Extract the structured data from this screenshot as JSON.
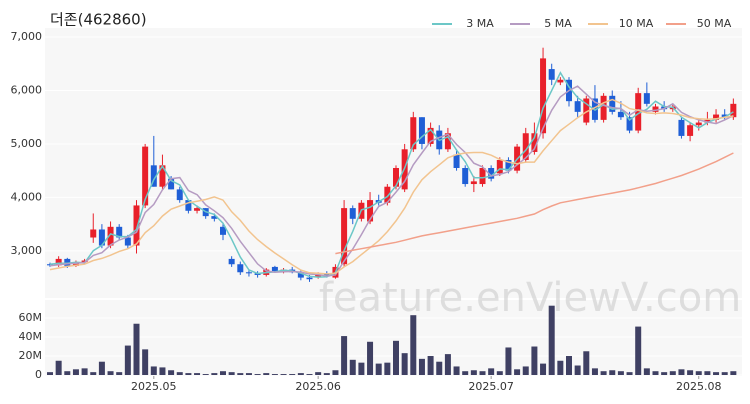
{
  "chart_data": [
    {
      "type": "candlestick",
      "title": "더존(462860)",
      "watermark": "feature.enViewV.com",
      "up_color": "#e8202a",
      "down_color": "#1f5fd6",
      "ylim": [
        2100,
        7000
      ],
      "yticks": [
        {
          "value": 3000,
          "label": "3,000"
        },
        {
          "value": 4000,
          "label": "4,000"
        },
        {
          "value": 5000,
          "label": "5,000"
        },
        {
          "value": 6000,
          "label": "6,000"
        },
        {
          "value": 7000,
          "label": "7,000"
        }
      ],
      "open": [
        2750,
        2730,
        2850,
        2720,
        2790,
        3250,
        3400,
        3100,
        3450,
        3250,
        3100,
        3850,
        4600,
        4200,
        4350,
        4150,
        3950,
        3750,
        3800,
        3650,
        3450,
        2850,
        2750,
        2600,
        2580,
        2550,
        2700,
        2620,
        2650,
        2600,
        2500,
        2520,
        2560,
        2500,
        2750,
        3800,
        3600,
        3550,
        3950,
        3900,
        4200,
        4150,
        4900,
        5500,
        5000,
        5250,
        4900,
        4800,
        4550,
        4250,
        4250,
        4550,
        4450,
        4700,
        4500,
        4700,
        4850,
        5200,
        6400,
        6150,
        6200,
        5800,
        5400,
        5850,
        5450,
        5900,
        5600,
        5500,
        5250,
        5950,
        5600,
        5700,
        5650,
        5450,
        5150,
        5350,
        5400,
        5450,
        5550,
        5500
      ],
      "high": [
        2780,
        2900,
        2870,
        2820,
        2850,
        3700,
        3500,
        3550,
        3500,
        3300,
        3950,
        5000,
        5150,
        4800,
        4400,
        4200,
        3950,
        3850,
        3800,
        3700,
        3500,
        2900,
        2800,
        2650,
        2620,
        2680,
        2720,
        2680,
        2700,
        2650,
        2550,
        2600,
        2620,
        2750,
        3950,
        3850,
        3950,
        4100,
        4050,
        4250,
        4600,
        5000,
        5600,
        5500,
        5400,
        5350,
        5300,
        4900,
        4600,
        4400,
        4600,
        4600,
        4750,
        4750,
        5000,
        5300,
        5400,
        6800,
        6500,
        6250,
        6250,
        5900,
        5900,
        6100,
        5950,
        6000,
        5800,
        5600,
        6050,
        6150,
        5750,
        5800,
        5750,
        5500,
        5400,
        5450,
        5600,
        5650,
        5650,
        5850
      ],
      "low": [
        2700,
        2700,
        2680,
        2700,
        2750,
        3150,
        3050,
        3050,
        3200,
        3050,
        2950,
        3800,
        4200,
        4150,
        4150,
        3900,
        3700,
        3700,
        3600,
        3550,
        3200,
        2700,
        2550,
        2520,
        2500,
        2520,
        2600,
        2580,
        2580,
        2450,
        2420,
        2480,
        2500,
        2480,
        2700,
        3500,
        3550,
        3500,
        3850,
        3850,
        4150,
        4100,
        4850,
        4900,
        4950,
        4800,
        4850,
        4500,
        4200,
        4100,
        4200,
        4300,
        4400,
        4450,
        4450,
        4650,
        4800,
        5100,
        6100,
        6100,
        5700,
        5500,
        5350,
        5400,
        5400,
        5550,
        5450,
        5200,
        5200,
        5700,
        5550,
        5600,
        5600,
        5100,
        5050,
        5250,
        5350,
        5400,
        5450,
        5450
      ],
      "close": [
        2730,
        2850,
        2720,
        2790,
        2820,
        3400,
        3100,
        3450,
        3250,
        3100,
        3850,
        4950,
        4200,
        4600,
        4150,
        3950,
        3750,
        3800,
        3650,
        3600,
        3300,
        2750,
        2600,
        2580,
        2550,
        2650,
        2620,
        2650,
        2600,
        2500,
        2470,
        2560,
        2520,
        2700,
        3800,
        3600,
        3900,
        3950,
        3900,
        4200,
        4550,
        4900,
        5500,
        5000,
        5300,
        4900,
        5200,
        4550,
        4250,
        4300,
        4550,
        4350,
        4700,
        4500,
        4950,
        5200,
        5200,
        6600,
        6200,
        6200,
        5800,
        5600,
        5850,
        5450,
        5900,
        5600,
        5500,
        5250,
        5950,
        5750,
        5700,
        5650,
        5700,
        5150,
        5350,
        5400,
        5450,
        5550,
        5500,
        5750
      ],
      "legend": "top-right",
      "series": [
        {
          "name": "3 MA",
          "color": "#6cc7c7",
          "values": [
            2750,
            2770,
            2767,
            2787,
            2777,
            3003,
            3107,
            3317,
            3267,
            3267,
            3400,
            3967,
            4333,
            4583,
            4317,
            4233,
            3950,
            3833,
            3733,
            3683,
            3517,
            3217,
            2883,
            2643,
            2577,
            2593,
            2607,
            2640,
            2623,
            2583,
            2523,
            2510,
            2517,
            2593,
            3007,
            3367,
            3767,
            3817,
            3917,
            4017,
            4217,
            4550,
            4983,
            5133,
            5267,
            5067,
            5133,
            4883,
            4667,
            4367,
            4367,
            4400,
            4533,
            4517,
            4717,
            4883,
            5117,
            5667,
            6000,
            6333,
            6067,
            5867,
            5750,
            5633,
            5733,
            5650,
            5667,
            5450,
            5567,
            5650,
            5800,
            5700,
            5683,
            5500,
            5400,
            5300,
            5400,
            5467,
            5500,
            5600
          ]
        },
        {
          "name": "5 MA",
          "color": "#b59bc2",
          "values": [
            2720,
            2740,
            2760,
            2770,
            2782,
            2916,
            2966,
            3112,
            3204,
            3260,
            3350,
            3720,
            3870,
            4140,
            4350,
            4370,
            4130,
            4050,
            3860,
            3750,
            3620,
            3420,
            3180,
            2966,
            2756,
            2626,
            2600,
            2610,
            2614,
            2604,
            2568,
            2556,
            2530,
            2550,
            2810,
            3036,
            3304,
            3590,
            3830,
            3910,
            4100,
            4300,
            4610,
            4830,
            5050,
            5120,
            5180,
            4990,
            4840,
            4640,
            4570,
            4400,
            4430,
            4480,
            4610,
            4740,
            4910,
            5290,
            5630,
            5880,
            6000,
            6080,
            5930,
            5780,
            5720,
            5680,
            5660,
            5540,
            5640,
            5610,
            5630,
            5660,
            5750,
            5590,
            5510,
            5450,
            5410,
            5380,
            5450,
            5530
          ]
        },
        {
          "name": "10 MA",
          "color": "#f2c48f",
          "values": [
            2650,
            2680,
            2710,
            2730,
            2750,
            2820,
            2860,
            2920,
            2990,
            3040,
            3130,
            3340,
            3470,
            3650,
            3780,
            3840,
            3900,
            3930,
            3960,
            4010,
            3950,
            3730,
            3570,
            3370,
            3210,
            3080,
            2960,
            2850,
            2740,
            2640,
            2590,
            2580,
            2570,
            2580,
            2700,
            2800,
            2930,
            3060,
            3190,
            3360,
            3560,
            3800,
            4100,
            4330,
            4480,
            4610,
            4740,
            4800,
            4830,
            4840,
            4840,
            4790,
            4710,
            4660,
            4630,
            4660,
            4660,
            4870,
            5060,
            5250,
            5370,
            5490,
            5600,
            5680,
            5770,
            5830,
            5760,
            5660,
            5630,
            5580,
            5570,
            5580,
            5570,
            5540,
            5490,
            5470,
            5460,
            5470,
            5500,
            5520
          ]
        },
        {
          "name": "50 MA",
          "color": "#f2a08a",
          "values": [
            null,
            null,
            null,
            null,
            null,
            null,
            null,
            null,
            null,
            null,
            null,
            null,
            null,
            null,
            null,
            null,
            null,
            null,
            null,
            null,
            null,
            null,
            null,
            null,
            null,
            null,
            null,
            null,
            null,
            null,
            null,
            null,
            null,
            2950,
            2980,
            3010,
            3040,
            3070,
            3100,
            3130,
            3160,
            3200,
            3240,
            3280,
            3310,
            3340,
            3370,
            3400,
            3430,
            3460,
            3490,
            3520,
            3550,
            3580,
            3610,
            3650,
            3690,
            3770,
            3840,
            3900,
            3930,
            3960,
            3990,
            4020,
            4050,
            4080,
            4110,
            4140,
            4180,
            4220,
            4260,
            4310,
            4360,
            4410,
            4470,
            4530,
            4600,
            4670,
            4750,
            4830
          ]
        }
      ]
    },
    {
      "type": "bar",
      "color": "#3f4063",
      "categories": [
        null,
        null,
        null,
        null,
        null,
        null,
        null,
        null,
        null,
        null,
        null,
        null,
        "2025.05",
        null,
        null,
        null,
        null,
        null,
        null,
        null,
        null,
        null,
        null,
        null,
        null,
        null,
        null,
        null,
        null,
        null,
        null,
        "2025.06",
        null,
        null,
        null,
        null,
        null,
        null,
        null,
        null,
        null,
        null,
        null,
        null,
        null,
        null,
        null,
        null,
        null,
        null,
        null,
        "2025.07",
        null,
        null,
        null,
        null,
        null,
        null,
        null,
        null,
        null,
        null,
        null,
        null,
        null,
        null,
        null,
        null,
        null,
        null,
        null,
        null,
        null,
        null,
        null,
        "2025.08",
        null,
        null,
        null,
        null
      ],
      "values": [
        3,
        15,
        4,
        6,
        7,
        3,
        14,
        4,
        3,
        31,
        54,
        27,
        9,
        8,
        5,
        3,
        2,
        2,
        1,
        2,
        4,
        3,
        2,
        2,
        1,
        2,
        1,
        1,
        1,
        2,
        1,
        3,
        2,
        5,
        41,
        16,
        13,
        35,
        12,
        13,
        36,
        23,
        63,
        17,
        20,
        14,
        22,
        9,
        4,
        5,
        4,
        7,
        4,
        29,
        6,
        9,
        30,
        12,
        73,
        15,
        20,
        10,
        25,
        7,
        4,
        5,
        4,
        3,
        51,
        7,
        4,
        3,
        4,
        6,
        5,
        4,
        4,
        3,
        3,
        4
      ],
      "ylim": [
        0,
        79
      ],
      "yticks": [
        0,
        {
          "value": 20,
          "label": "20M"
        },
        {
          "value": 40,
          "label": "40M"
        },
        {
          "value": 60,
          "label": "60M"
        }
      ]
    }
  ]
}
